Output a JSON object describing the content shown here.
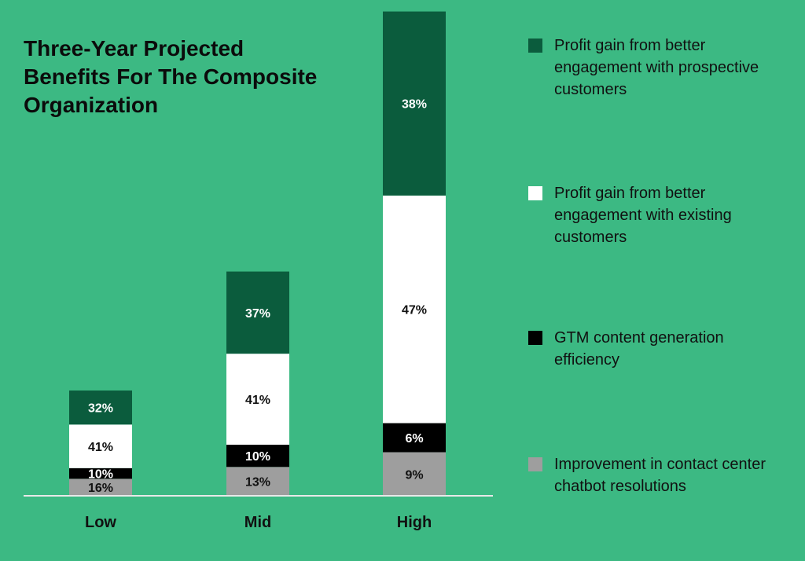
{
  "chart_data": {
    "type": "bar",
    "stacked": true,
    "title": "Three-Year Projected Benefits For The Composite Organization",
    "categories": [
      "Low",
      "Mid",
      "High"
    ],
    "totals_relative": [
      1.0,
      2.13,
      4.6
    ],
    "series": [
      {
        "name": "Improvement in contact center chatbot resolutions",
        "values": [
          16,
          13,
          9
        ],
        "color": "#9e9e9e",
        "label_color": "#111111"
      },
      {
        "name": "GTM content generation efficiency",
        "values": [
          10,
          10,
          6
        ],
        "color": "#000000",
        "label_color": "#ffffff"
      },
      {
        "name": "Profit gain from better engagement with existing customers",
        "values": [
          41,
          41,
          47
        ],
        "color": "#ffffff",
        "label_color": "#111111"
      },
      {
        "name": "Profit gain from better engagement with prospective customers",
        "values": [
          32,
          37,
          38
        ],
        "color": "#0b5c3d",
        "label_color": "#ffffff"
      }
    ],
    "value_suffix": "%",
    "xlabel": "",
    "ylabel": "",
    "grid": false,
    "legend_position": "right"
  },
  "colors": {
    "background": "#3cb983",
    "baseline": "#e8e8e8"
  }
}
